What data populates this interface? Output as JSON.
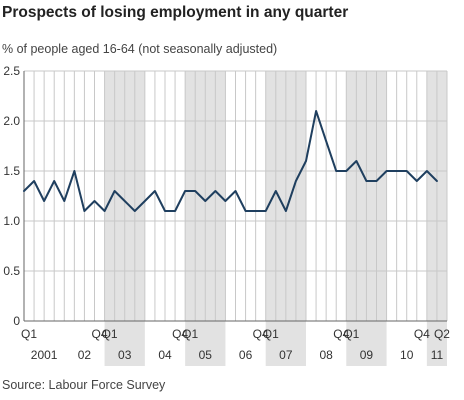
{
  "chart_data": {
    "type": "line",
    "title": "Prospects of losing employment in any quarter",
    "subtitle": "% of people aged 16-64 (not seasonally adjusted)",
    "source": "Source: Labour Force Survey",
    "xlabel": "",
    "ylabel": "",
    "ylim": [
      0,
      2.5
    ],
    "yticks": [
      "0",
      "0.5",
      "1.0",
      "1.5",
      "2.0",
      "2.5"
    ],
    "grid": true,
    "shaded_years": [
      "03",
      "05",
      "07",
      "09",
      "11"
    ],
    "quarter_labels": [
      {
        "label": "Q1",
        "index": 0
      },
      {
        "label": "Q4",
        "index": 7
      },
      {
        "label": "Q1",
        "index": 8
      },
      {
        "label": "Q4",
        "index": 15
      },
      {
        "label": "Q1",
        "index": 16
      },
      {
        "label": "Q4",
        "index": 23
      },
      {
        "label": "Q1",
        "index": 24
      },
      {
        "label": "Q4",
        "index": 31
      },
      {
        "label": "Q1",
        "index": 32
      },
      {
        "label": "Q4",
        "index": 39
      },
      {
        "label": "Q2",
        "index": 41
      }
    ],
    "year_labels": [
      {
        "label": "2001",
        "start": 0
      },
      {
        "label": "02",
        "start": 4
      },
      {
        "label": "03",
        "start": 8
      },
      {
        "label": "04",
        "start": 12
      },
      {
        "label": "05",
        "start": 16
      },
      {
        "label": "06",
        "start": 20
      },
      {
        "label": "07",
        "start": 24
      },
      {
        "label": "08",
        "start": 28
      },
      {
        "label": "09",
        "start": 32
      },
      {
        "label": "10",
        "start": 36
      },
      {
        "label": "11",
        "start": 40
      }
    ],
    "x": [
      "2001 Q1",
      "2001 Q2",
      "2001 Q3",
      "2001 Q4",
      "2002 Q1",
      "2002 Q2",
      "2002 Q3",
      "2002 Q4",
      "2003 Q1",
      "2003 Q2",
      "2003 Q3",
      "2003 Q4",
      "2004 Q1",
      "2004 Q2",
      "2004 Q3",
      "2004 Q4",
      "2005 Q1",
      "2005 Q2",
      "2005 Q3",
      "2005 Q4",
      "2006 Q1",
      "2006 Q2",
      "2006 Q3",
      "2006 Q4",
      "2007 Q1",
      "2007 Q2",
      "2007 Q3",
      "2007 Q4",
      "2008 Q1",
      "2008 Q2",
      "2008 Q3",
      "2008 Q4",
      "2009 Q1",
      "2009 Q2",
      "2009 Q3",
      "2009 Q4",
      "2010 Q1",
      "2010 Q2",
      "2010 Q3",
      "2010 Q4",
      "2011 Q1",
      "2011 Q2"
    ],
    "series": [
      {
        "values": [
          1.3,
          1.4,
          1.2,
          1.4,
          1.2,
          1.5,
          1.1,
          1.2,
          1.1,
          1.3,
          1.2,
          1.1,
          1.2,
          1.3,
          1.1,
          1.1,
          1.3,
          1.3,
          1.2,
          1.3,
          1.2,
          1.3,
          1.1,
          1.1,
          1.1,
          1.3,
          1.1,
          1.4,
          1.6,
          2.1,
          1.8,
          1.5,
          1.5,
          1.6,
          1.4,
          1.4,
          1.5,
          1.5,
          1.5,
          1.4,
          1.5,
          1.4
        ],
        "color": "#1f3f5f"
      }
    ],
    "colors": {
      "line": "#1f3f5f",
      "shade": "#e2e2e2",
      "grid": "#c8c8c8",
      "axis": "#666666"
    }
  }
}
